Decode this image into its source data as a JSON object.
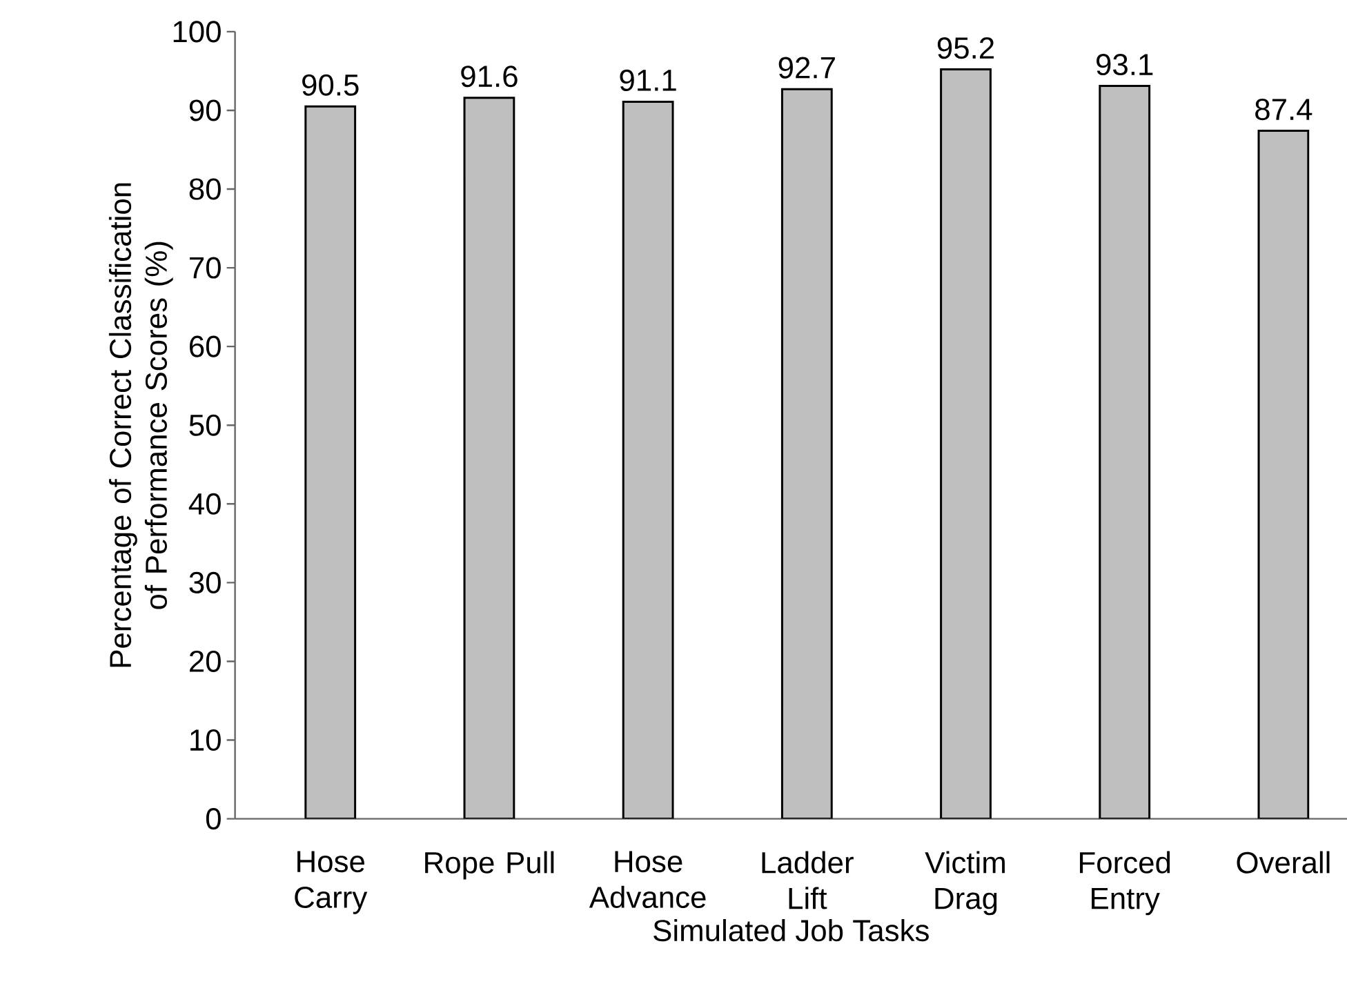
{
  "chart_data": {
    "type": "bar",
    "categories": [
      "Hose Carry",
      "Rope Pull",
      "Hose Advance",
      "Ladder Lift",
      "Victim Drag",
      "Forced Entry",
      "Overall"
    ],
    "values": [
      90.5,
      91.6,
      91.1,
      92.7,
      95.2,
      93.1,
      87.4
    ],
    "color": "#bfbfbf",
    "xlabel": "Simulated Job Tasks",
    "ylabel": "Percentage of Correct Classification of Performance Scores (%)",
    "ylim": [
      0,
      100
    ],
    "yticks": [
      0,
      10,
      20,
      30,
      40,
      50,
      60,
      70,
      80,
      90,
      100
    ],
    "data_labels": true,
    "grid": false
  }
}
